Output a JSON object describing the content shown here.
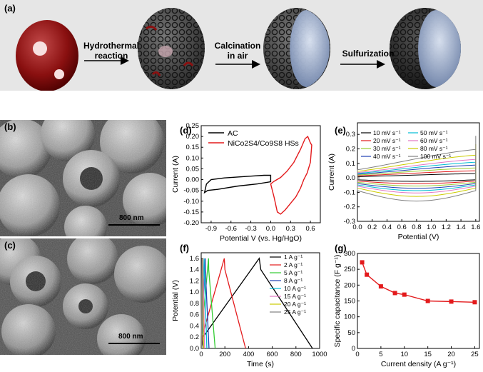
{
  "panel_a": {
    "label": "(a)",
    "steps": [
      "Hydrothermal reaction",
      "Calcination in air",
      "Sulfurization"
    ]
  },
  "panel_b": {
    "label": "(b)",
    "scale": "800 nm"
  },
  "panel_c": {
    "label": "(c)",
    "scale": "800 nm"
  },
  "chart_data": [
    {
      "id": "d",
      "label": "(d)",
      "type": "line",
      "xlabel": "Potential V (vs. Hg/HgO)",
      "ylabel": "Current (A)",
      "xlim": [
        -1.05,
        0.75
      ],
      "ylim": [
        -0.2,
        0.25
      ],
      "xticks": [
        "-0.9",
        "-0.6",
        "-0.3",
        "0.0",
        "0.3",
        "0.6"
      ],
      "xtick_values": [
        -0.9,
        -0.6,
        -0.3,
        0.0,
        0.3,
        0.6
      ],
      "yticks": [
        "-0.20",
        "-0.15",
        "-0.10",
        "-0.05",
        "0.00",
        "0.05",
        "0.10",
        "0.15",
        "0.20",
        "0.25"
      ],
      "ytick_values": [
        -0.2,
        -0.15,
        -0.1,
        -0.05,
        0.0,
        0.05,
        0.1,
        0.15,
        0.2,
        0.25
      ],
      "series": [
        {
          "name": "AC",
          "color": "#000000",
          "x": [
            -1.0,
            -0.97,
            -0.9,
            -0.7,
            -0.5,
            -0.3,
            -0.1,
            0.0,
            0.0,
            -0.2,
            -0.5,
            -0.8,
            -0.95,
            -1.0
          ],
          "y": [
            -0.06,
            -0.02,
            0.0,
            0.008,
            0.012,
            0.016,
            0.02,
            0.02,
            -0.01,
            -0.02,
            -0.03,
            -0.045,
            -0.05,
            -0.06
          ]
        },
        {
          "name": "NiCo2S4/Co9S8 HSs",
          "color": "#e31a1c",
          "x": [
            0.0,
            0.05,
            0.15,
            0.25,
            0.35,
            0.45,
            0.52,
            0.56,
            0.6,
            0.62,
            0.6,
            0.55,
            0.5,
            0.45,
            0.38,
            0.3,
            0.22,
            0.15,
            0.1,
            0.05,
            0.0
          ],
          "y": [
            -0.02,
            -0.008,
            0.01,
            0.04,
            0.08,
            0.14,
            0.19,
            0.2,
            0.17,
            0.16,
            0.08,
            0.03,
            0.0,
            -0.04,
            -0.08,
            -0.11,
            -0.14,
            -0.16,
            -0.15,
            -0.08,
            -0.02
          ]
        }
      ],
      "legend_position": "top-left"
    },
    {
      "id": "e",
      "label": "(e)",
      "type": "line",
      "xlabel": "Potential (V)",
      "ylabel": "Current (A)",
      "xlim": [
        0.0,
        1.65
      ],
      "ylim": [
        -0.3,
        0.38
      ],
      "xticks": [
        "0.0",
        "0.2",
        "0.4",
        "0.6",
        "0.8",
        "1.0",
        "1.2",
        "1.4",
        "1.6"
      ],
      "xtick_values": [
        0.0,
        0.2,
        0.4,
        0.6,
        0.8,
        1.0,
        1.2,
        1.4,
        1.6
      ],
      "yticks": [
        "-0.3",
        "-0.2",
        "-0.1",
        "0.0",
        "0.1",
        "0.2",
        "0.3"
      ],
      "ytick_values": [
        -0.3,
        -0.2,
        -0.1,
        0.0,
        0.1,
        0.2,
        0.3
      ],
      "series": [
        {
          "name": "10 mV s⁻¹",
          "color": "#000000",
          "amplitude": 0.03
        },
        {
          "name": "20 mV s⁻¹",
          "color": "#e31a1c",
          "amplitude": 0.05
        },
        {
          "name": "30 mV s⁻¹",
          "color": "#9acd32",
          "amplitude": 0.07
        },
        {
          "name": "40 mV s⁻¹",
          "color": "#1f3fb4",
          "amplitude": 0.09
        },
        {
          "name": "50 mV s⁻¹",
          "color": "#00bcd4",
          "amplitude": 0.11
        },
        {
          "name": "60 mV s⁻¹",
          "color": "#e377c2",
          "amplitude": 0.13
        },
        {
          "name": "80 mV s⁻¹",
          "color": "#cccc00",
          "amplitude": 0.16
        },
        {
          "name": "100 mV s⁻¹",
          "color": "#808080",
          "amplitude": 0.2
        }
      ],
      "legend_position": "top"
    },
    {
      "id": "f",
      "label": "(f)",
      "type": "line",
      "xlabel": "Time (s)",
      "ylabel": "Potential (V)",
      "xlim": [
        0,
        1000
      ],
      "ylim": [
        0.0,
        1.7
      ],
      "xticks": [
        "0",
        "200",
        "400",
        "600",
        "800",
        "1000"
      ],
      "xtick_values": [
        0,
        200,
        400,
        600,
        800,
        1000
      ],
      "yticks": [
        "0.0",
        "0.2",
        "0.4",
        "0.6",
        "0.8",
        "1.0",
        "1.2",
        "1.4",
        "1.6"
      ],
      "ytick_values": [
        0.0,
        0.2,
        0.4,
        0.6,
        0.8,
        1.0,
        1.2,
        1.4,
        1.6
      ],
      "series": [
        {
          "name": "1 A g⁻¹",
          "color": "#000000",
          "peak_time": 490,
          "end_time": 940
        },
        {
          "name": "2 A g⁻¹",
          "color": "#e31a1c",
          "peak_time": 195,
          "end_time": 375
        },
        {
          "name": "5 A g⁻¹",
          "color": "#33cc33",
          "peak_time": 62,
          "end_time": 118
        },
        {
          "name": "8 A g⁻¹",
          "color": "#1f3fb4",
          "peak_time": 34,
          "end_time": 66
        },
        {
          "name": "10 A g⁻¹",
          "color": "#00bcd4",
          "peak_time": 25,
          "end_time": 48
        },
        {
          "name": "15 A g⁻¹",
          "color": "#e377c2",
          "peak_time": 15,
          "end_time": 29
        },
        {
          "name": "20 A g⁻¹",
          "color": "#cccc00",
          "peak_time": 10,
          "end_time": 20
        },
        {
          "name": "25 A g⁻¹",
          "color": "#808080",
          "peak_time": 7,
          "end_time": 14
        }
      ],
      "legend_position": "top-right"
    },
    {
      "id": "g",
      "label": "(g)",
      "type": "line",
      "xlabel": "Current density (A g⁻¹)",
      "ylabel": "Specific capacitance (F g⁻¹)",
      "xlim": [
        0,
        26
      ],
      "ylim": [
        0,
        300
      ],
      "xticks": [
        "0",
        "5",
        "10",
        "15",
        "20",
        "25"
      ],
      "xtick_values": [
        0,
        5,
        10,
        15,
        20,
        25
      ],
      "yticks": [
        "0",
        "50",
        "100",
        "150",
        "200",
        "250",
        "300"
      ],
      "ytick_values": [
        0,
        50,
        100,
        150,
        200,
        250,
        300
      ],
      "series": [
        {
          "name": "",
          "color": "#e31a1c",
          "x": [
            1,
            2,
            5,
            8,
            10,
            15,
            20,
            25
          ],
          "y": [
            272,
            233,
            196,
            175,
            170,
            150,
            148,
            146
          ]
        }
      ]
    }
  ]
}
